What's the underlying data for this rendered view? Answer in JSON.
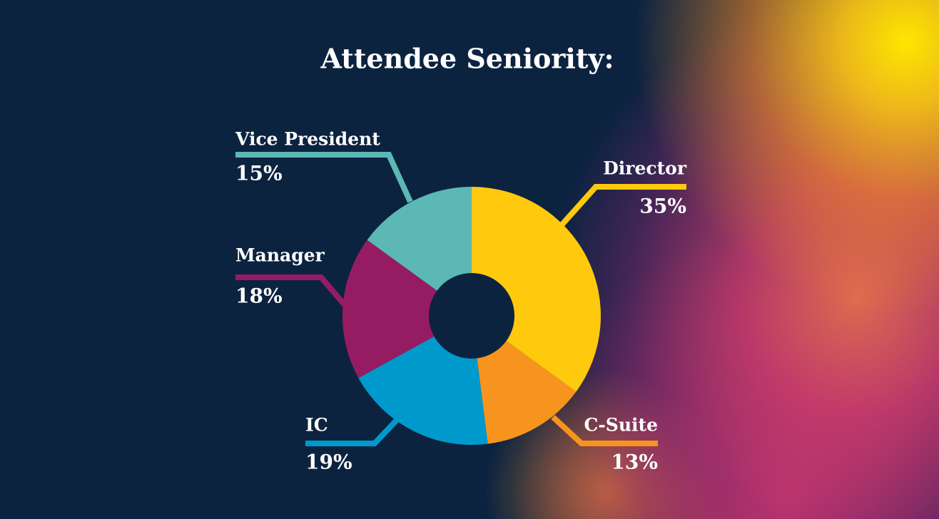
{
  "chart_data": {
    "type": "pie",
    "title": "Attendee Seniority:",
    "categories": [
      "Director",
      "C-Suite",
      "IC",
      "Manager",
      "Vice President"
    ],
    "values": [
      35,
      13,
      19,
      18,
      15
    ],
    "value_labels": [
      "35%",
      "13%",
      "19%",
      "18%",
      "15%"
    ],
    "colors": [
      "#ffc90e",
      "#f7941d",
      "#0099cc",
      "#951c63",
      "#5bb8b4"
    ]
  }
}
